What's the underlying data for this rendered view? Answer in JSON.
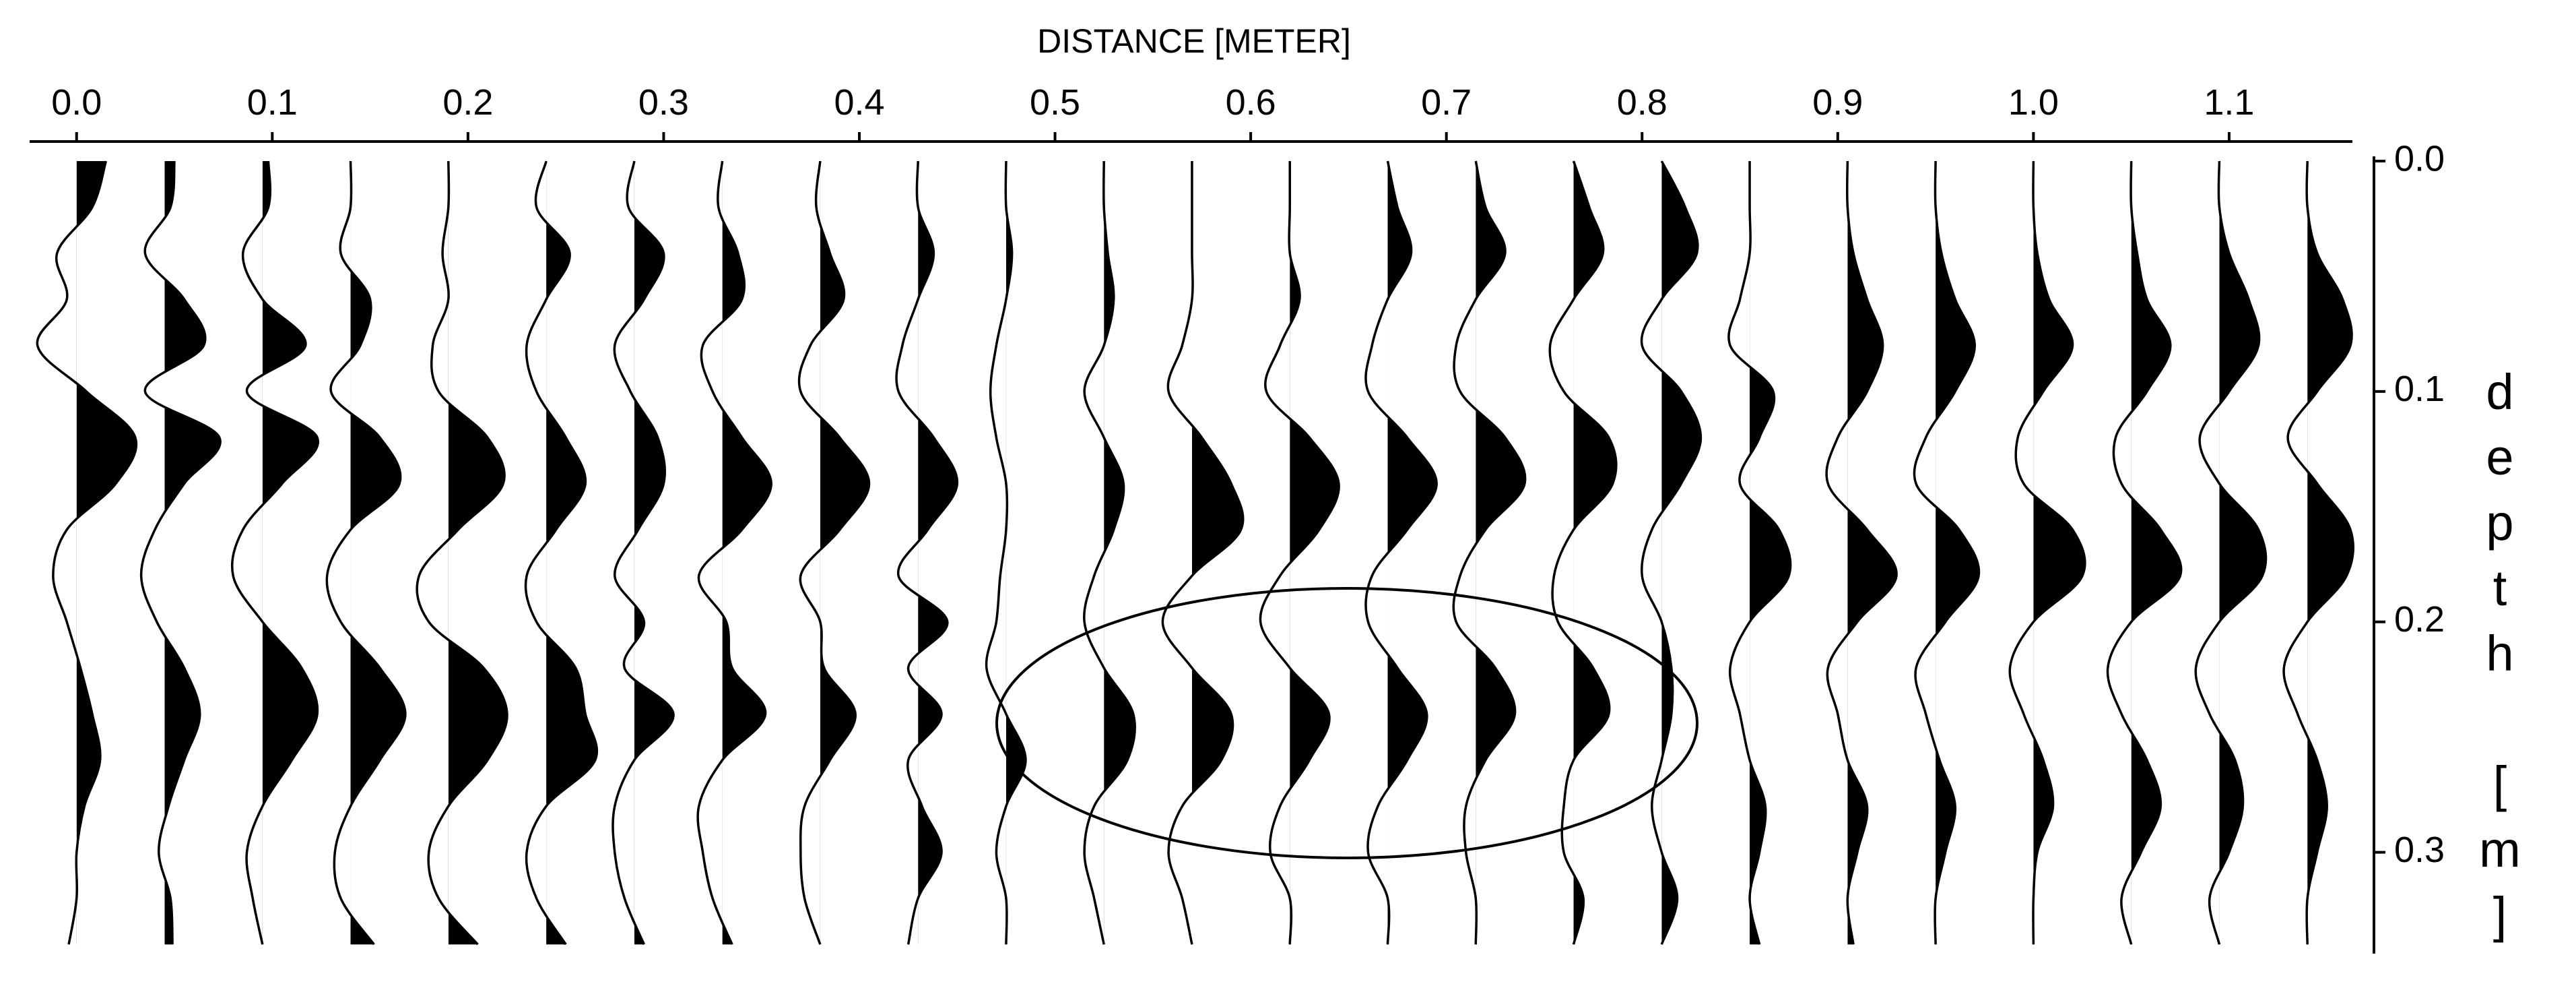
{
  "chart_data": {
    "type": "wiggle",
    "title": "DISTANCE [METER]",
    "y_label": "depth [m]",
    "xlim": [
      -0.024,
      1.163
    ],
    "ylim": [
      0,
      0.344
    ],
    "xticks": [
      {
        "value": 0,
        "label": "0.0"
      },
      0.1,
      0.2,
      0.3,
      0.4,
      0.5,
      0.6,
      0.7,
      0.8,
      0.9,
      {
        "value": 1,
        "label": "1.0"
      },
      1.1
    ],
    "yticks": [
      {
        "value": 0,
        "label": "0.0"
      },
      0.1,
      0.2,
      0.3
    ],
    "color": "#000000",
    "depths": [
      0,
      0.02,
      0.04,
      0.06,
      0.08,
      0.1,
      0.12,
      0.14,
      0.16,
      0.18,
      0.2,
      0.22,
      0.24,
      0.26,
      0.28,
      0.3,
      0.32,
      0.34
    ],
    "series": [
      {
        "x": 0,
        "values": [
          0.015,
          0.008,
          -0.01,
          -0.005,
          -0.02,
          0.005,
          0.03,
          0.02,
          -0.005,
          -0.012,
          -0.005,
          0.002,
          0.008,
          0.012,
          0.004,
          0,
          0,
          -0.004
        ]
      },
      {
        "x": 0.045,
        "values": [
          0.005,
          0.003,
          -0.01,
          0.01,
          0.02,
          -0.01,
          0.028,
          0.01,
          -0.005,
          -0.012,
          -0.004,
          0.01,
          0.018,
          0.01,
          0.002,
          -0.003,
          0.003,
          0.004
        ]
      },
      {
        "x": 0.095,
        "values": [
          0.003,
          0.003,
          -0.01,
          0,
          0.022,
          -0.008,
          0.028,
          0.01,
          -0.01,
          -0.015,
          0,
          0.02,
          0.028,
          0.015,
          0,
          -0.008,
          -0.005,
          0
        ]
      },
      {
        "x": 0.14,
        "values": [
          0,
          0,
          -0.005,
          0.01,
          0.005,
          -0.01,
          0.015,
          0.025,
          0,
          -0.012,
          -0.005,
          0.015,
          0.028,
          0.015,
          0,
          -0.008,
          -0.005,
          0.012
        ]
      },
      {
        "x": 0.19,
        "values": [
          0,
          0,
          -0.003,
          0,
          -0.008,
          -0.005,
          0.02,
          0.028,
          0.005,
          -0.015,
          -0.01,
          0.018,
          0.03,
          0.02,
          0,
          -0.01,
          -0.005,
          0.015
        ]
      },
      {
        "x": 0.24,
        "values": [
          0,
          -0.005,
          0.012,
          0,
          -0.01,
          -0.005,
          0.01,
          0.02,
          0.005,
          -0.01,
          -0.005,
          0.015,
          0.02,
          0.025,
          0,
          -0.01,
          -0.005,
          0.01
        ]
      },
      {
        "x": 0.285,
        "values": [
          0,
          -0.003,
          0.015,
          0.005,
          -0.01,
          -0.002,
          0.012,
          0.015,
          0.002,
          -0.01,
          0.005,
          -0.005,
          0.02,
          0,
          -0.01,
          -0.01,
          -0.005,
          0.005
        ]
      },
      {
        "x": 0.33,
        "values": [
          0,
          -0.002,
          0.008,
          0.01,
          -0.01,
          -0.005,
          0.01,
          0.025,
          0.01,
          -0.012,
          0.002,
          0.005,
          0.022,
          0,
          -0.012,
          -0.01,
          -0.005,
          0.005
        ]
      },
      {
        "x": 0.38,
        "values": [
          0,
          -0.002,
          0.005,
          0.012,
          -0.005,
          -0.01,
          0.01,
          0.025,
          0.01,
          -0.01,
          0,
          0.002,
          0.018,
          0.005,
          -0.008,
          -0.01,
          -0.008,
          0
        ]
      },
      {
        "x": 0.43,
        "values": [
          0,
          0,
          0.008,
          0,
          -0.008,
          -0.01,
          0.008,
          0.02,
          0.005,
          -0.01,
          0.015,
          -0.005,
          0.012,
          -0.005,
          0.002,
          0.012,
          0,
          -0.005
        ]
      },
      {
        "x": 0.475,
        "values": [
          0,
          0,
          0.003,
          0,
          -0.005,
          -0.008,
          -0.005,
          0,
          0,
          -0.003,
          -0.005,
          -0.01,
          0,
          0.01,
          0,
          -0.005,
          0,
          0
        ]
      },
      {
        "x": 0.525,
        "values": [
          0,
          0,
          0.002,
          0.005,
          0,
          -0.01,
          0,
          0.01,
          0.005,
          -0.005,
          -0.01,
          0,
          0.015,
          0.012,
          -0.005,
          -0.01,
          -0.005,
          0
        ]
      },
      {
        "x": 0.57,
        "values": [
          0,
          0,
          0,
          0,
          -0.005,
          -0.012,
          0.005,
          0.02,
          0.025,
          0,
          -0.015,
          0,
          0.02,
          0.015,
          -0.005,
          -0.012,
          -0.005,
          0
        ]
      },
      {
        "x": 0.62,
        "values": [
          0,
          0,
          0,
          0.005,
          -0.005,
          -0.012,
          0.01,
          0.025,
          0.015,
          -0.005,
          -0.015,
          0,
          0.02,
          0.01,
          -0.005,
          -0.01,
          0,
          0
        ]
      },
      {
        "x": 0.67,
        "values": [
          0,
          0.005,
          0.012,
          0,
          -0.008,
          -0.01,
          0.01,
          0.025,
          0.01,
          -0.008,
          -0.01,
          0.005,
          0.02,
          0.01,
          -0.005,
          -0.01,
          0,
          0
        ]
      },
      {
        "x": 0.715,
        "values": [
          0,
          0.005,
          0.015,
          0,
          -0.01,
          -0.008,
          0.015,
          0.025,
          0.005,
          -0.008,
          -0.01,
          0.01,
          0.02,
          0.005,
          -0.005,
          -0.005,
          0,
          0
        ]
      },
      {
        "x": 0.765,
        "values": [
          0,
          0.008,
          0.015,
          0,
          -0.012,
          -0.005,
          0.018,
          0.02,
          0,
          -0.01,
          -0.008,
          0.01,
          0.018,
          0,
          -0.005,
          -0.005,
          0.005,
          0
        ]
      },
      {
        "x": 0.81,
        "values": [
          0,
          0.012,
          0.018,
          0,
          -0.01,
          0.01,
          0.02,
          0.01,
          -0.005,
          -0.01,
          0,
          0.005,
          0.005,
          0,
          -0.005,
          0,
          0.008,
          0
        ]
      },
      {
        "x": 0.855,
        "values": [
          0,
          0,
          0,
          -0.005,
          -0.01,
          0.012,
          0.005,
          -0.005,
          0.015,
          0.02,
          0,
          -0.01,
          -0.005,
          0,
          0.008,
          0.005,
          0,
          0.005
        ]
      },
      {
        "x": 0.905,
        "values": [
          0,
          0,
          0.003,
          0.01,
          0.018,
          0.01,
          -0.005,
          -0.01,
          0.01,
          0.025,
          0.005,
          -0.01,
          -0.005,
          0,
          0.01,
          0.005,
          0,
          0.003
        ]
      },
      {
        "x": 0.95,
        "values": [
          0,
          0,
          0.003,
          0.01,
          0.02,
          0.01,
          -0.005,
          -0.01,
          0.012,
          0.022,
          0.005,
          -0.01,
          -0.005,
          0.002,
          0.01,
          0.005,
          0,
          0
        ]
      },
      {
        "x": 1.0,
        "values": [
          0,
          0,
          0.002,
          0.008,
          0.02,
          0.005,
          -0.008,
          -0.005,
          0.02,
          0.025,
          0,
          -0.012,
          -0.005,
          0.005,
          0.01,
          0.002,
          0,
          0
        ]
      },
      {
        "x": 1.05,
        "values": [
          0,
          0,
          0.003,
          0.008,
          0.02,
          0.008,
          -0.008,
          -0.005,
          0.015,
          0.025,
          0,
          -0.012,
          -0.005,
          0.008,
          0.015,
          0.005,
          -0.005,
          0
        ]
      },
      {
        "x": 1.095,
        "values": [
          0,
          0,
          0.005,
          0.015,
          0.02,
          0.005,
          -0.01,
          0,
          0.02,
          0.022,
          0,
          -0.012,
          -0.005,
          0.008,
          0.012,
          0.005,
          -0.005,
          0
        ]
      },
      {
        "x": 1.14,
        "values": [
          0,
          0,
          0.005,
          0.018,
          0.022,
          0.005,
          -0.01,
          0.005,
          0.022,
          0.02,
          0,
          -0.012,
          -0.005,
          0.005,
          0.01,
          0.005,
          0,
          0
        ]
      }
    ]
  }
}
